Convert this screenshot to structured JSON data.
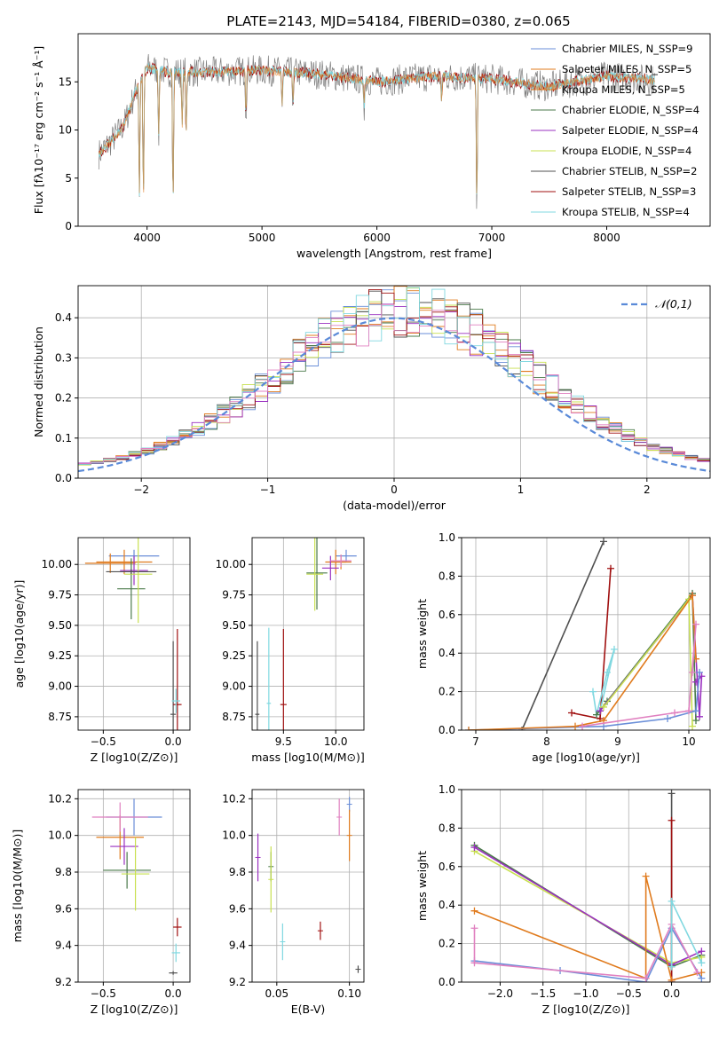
{
  "figure_title": "PLATE=2143, MJD=54184, FIBERID=0380, z=0.065",
  "colors": {
    "cm": "#6a8ed8",
    "sm": "#e07b1e",
    "km": "#e07b1e",
    "ce": "#4a7a4a",
    "se": "#9a30c0",
    "ke": "#c8e050",
    "cs": "#505050",
    "ss": "#a01010",
    "ks": "#80d8e0",
    "pink": "#e080c0",
    "data": "#7f7f7f"
  },
  "chart_data": [
    {
      "id": "spectrum",
      "type": "line",
      "title": "PLATE=2143, MJD=54184, FIBERID=0380, z=0.065",
      "xlabel": "wavelength [Angstrom, rest frame]",
      "ylabel": "Flux [fλ10⁻¹⁷ erg cm⁻² s⁻¹ Å⁻¹]",
      "xlim": [
        3400,
        8900
      ],
      "ylim": [
        0,
        20
      ],
      "xticks": [
        4000,
        5000,
        6000,
        7000,
        8000
      ],
      "yticks": [
        0,
        5,
        10,
        15
      ],
      "legend_position": "upper right",
      "legend": [
        {
          "label": "Chabrier MILES, N_SSP=9",
          "color": "#6a8ed8"
        },
        {
          "label": "Salpeter MILES, N_SSP=5",
          "color": "#e07b1e"
        },
        {
          "label": "Kroupa MILES, N_SSP=5",
          "color": "#e07b1e"
        },
        {
          "label": "Chabrier ELODIE, N_SSP=4",
          "color": "#4a7a4a"
        },
        {
          "label": "Salpeter ELODIE, N_SSP=4",
          "color": "#9a30c0"
        },
        {
          "label": "Kroupa ELODIE, N_SSP=4",
          "color": "#c8e050"
        },
        {
          "label": "Chabrier STELIB, N_SSP=2",
          "color": "#505050"
        },
        {
          "label": "Salpeter STELIB, N_SSP=3",
          "color": "#a01010"
        },
        {
          "label": "Kroupa STELIB, N_SSP=4",
          "color": "#80d8e0"
        }
      ],
      "continuum": [
        [
          3580,
          7.5
        ],
        [
          3700,
          9.0
        ],
        [
          3800,
          10.5
        ],
        [
          3900,
          14.0
        ],
        [
          4000,
          16.5
        ],
        [
          4200,
          16.0
        ],
        [
          4500,
          16.0
        ],
        [
          5000,
          16.2
        ],
        [
          5500,
          15.8
        ],
        [
          6000,
          15.0
        ],
        [
          6500,
          15.6
        ],
        [
          7000,
          15.3
        ],
        [
          7500,
          14.5
        ],
        [
          8000,
          15.6
        ],
        [
          8400,
          15.2
        ]
      ],
      "absorption_lines": [
        [
          3933,
          2
        ],
        [
          3968,
          1
        ],
        [
          4101,
          9
        ],
        [
          4226,
          0
        ],
        [
          4305,
          10
        ],
        [
          4340,
          8
        ],
        [
          4861,
          11
        ],
        [
          5175,
          12
        ],
        [
          5270,
          12.5
        ],
        [
          5890,
          12.5
        ],
        [
          6563,
          12.5
        ],
        [
          6870,
          0
        ]
      ]
    },
    {
      "id": "residuals",
      "type": "histogram",
      "xlabel": "(data-model)/error",
      "ylabel": "Normed distribution",
      "xlim": [
        -2.5,
        2.5
      ],
      "ylim": [
        0,
        0.48
      ],
      "xticks": [
        -2,
        -1,
        0,
        1,
        2
      ],
      "yticks": [
        0.0,
        0.1,
        0.2,
        0.3,
        0.4
      ],
      "grid": true,
      "legend_position": "upper right",
      "reference_curve": {
        "label": "𝒩(0,1)",
        "mean": 0,
        "sigma": 1,
        "color": "#5a8ad8"
      },
      "bin_width": 0.1
    },
    {
      "id": "age_vs_Z",
      "type": "errorbar",
      "xlabel": "Z [log10(Z/Z⊙)]",
      "ylabel": "age  [log10(age/yr)]",
      "xlim": [
        -0.68,
        0.12
      ],
      "ylim": [
        8.64,
        10.22
      ],
      "xticks": [
        -0.5,
        0.0
      ],
      "yticks": [
        8.75,
        9.0,
        9.25,
        9.5,
        9.75,
        10.0
      ],
      "grid": true,
      "points": [
        {
          "c": "cm",
          "x": -0.28,
          "y": 10.07,
          "xerr": 0.18,
          "yerr": 0.05
        },
        {
          "c": "sm",
          "x": -0.35,
          "y": 10.02,
          "xerr": 0.2,
          "yerr": 0.1
        },
        {
          "c": "km",
          "x": -0.45,
          "y": 10.01,
          "xerr": 0.18,
          "yerr": 0.08
        },
        {
          "c": "ce",
          "x": -0.3,
          "y": 9.8,
          "xerr": 0.1,
          "yerr": 0.25
        },
        {
          "c": "se",
          "x": -0.28,
          "y": 9.95,
          "xerr": 0.1,
          "yerr": 0.12
        },
        {
          "c": "ke",
          "x": -0.25,
          "y": 9.92,
          "xerr": 0.1,
          "yerr": 0.4
        },
        {
          "c": "cs",
          "x": 0.0,
          "y": 8.77,
          "xerr": 0.02,
          "yerr": 0.6
        },
        {
          "c": "ss",
          "x": 0.03,
          "y": 8.85,
          "xerr": 0.03,
          "yerr": 0.62
        },
        {
          "c": "ks",
          "x": 0.02,
          "y": 8.88,
          "xerr": 0.03,
          "yerr": 0.1
        },
        {
          "c": "cs",
          "x": -0.3,
          "y": 9.94,
          "xerr": 0.18,
          "yerr": 0.02
        }
      ]
    },
    {
      "id": "age_vs_mass",
      "type": "errorbar",
      "xlabel": "mass [log10(M/M⊙)]",
      "ylabel": "",
      "xlim": [
        9.2,
        10.27
      ],
      "ylim": [
        8.64,
        10.22
      ],
      "xticks": [
        9.5,
        10.0
      ],
      "yticks": [
        8.75,
        9.0,
        9.25,
        9.5,
        9.75,
        10.0
      ],
      "grid": true,
      "points": [
        {
          "c": "cm",
          "x": 10.1,
          "y": 10.07,
          "xerr": 0.1,
          "yerr": 0.05
        },
        {
          "c": "sm",
          "x": 10.0,
          "y": 10.02,
          "xerr": 0.1,
          "yerr": 0.1
        },
        {
          "c": "km",
          "x": 10.05,
          "y": 10.02,
          "xerr": 0.1,
          "yerr": 0.06
        },
        {
          "c": "ce",
          "x": 9.82,
          "y": 9.93,
          "xerr": 0.1,
          "yerr": 0.3
        },
        {
          "c": "se",
          "x": 9.95,
          "y": 9.97,
          "xerr": 0.08,
          "yerr": 0.1
        },
        {
          "c": "ke",
          "x": 9.8,
          "y": 9.92,
          "xerr": 0.08,
          "yerr": 0.3
        },
        {
          "c": "cs",
          "x": 9.25,
          "y": 8.77,
          "xerr": 0.02,
          "yerr": 0.6
        },
        {
          "c": "ss",
          "x": 9.5,
          "y": 8.85,
          "xerr": 0.03,
          "yerr": 0.62
        },
        {
          "c": "ks",
          "x": 9.36,
          "y": 8.86,
          "xerr": 0.02,
          "yerr": 0.62
        },
        {
          "c": "pink",
          "x": 10.05,
          "y": 10.03,
          "xerr": 0.1,
          "yerr": 0.05
        }
      ]
    },
    {
      "id": "weight_vs_age",
      "type": "line",
      "xlabel": "age  [log10(age/yr)]",
      "ylabel": "mass weight",
      "xlim": [
        6.8,
        10.3
      ],
      "ylim": [
        0,
        1.0
      ],
      "xticks": [
        7,
        8,
        9,
        10
      ],
      "yticks": [
        0.0,
        0.2,
        0.4,
        0.6,
        0.8,
        1.0
      ],
      "grid": true,
      "series": [
        {
          "c": "cs",
          "x": [
            7.65,
            8.8
          ],
          "y": [
            0.0,
            0.98
          ]
        },
        {
          "c": "ss",
          "x": [
            8.35,
            8.75,
            8.9
          ],
          "y": [
            0.09,
            0.06,
            0.84
          ]
        },
        {
          "c": "ks",
          "x": [
            8.65,
            8.7,
            8.85,
            8.95,
            8.75
          ],
          "y": [
            0.2,
            0.08,
            0.3,
            0.42,
            0.1
          ]
        },
        {
          "c": "ce",
          "x": [
            8.7,
            8.85,
            10.05,
            10.1
          ],
          "y": [
            0.08,
            0.15,
            0.71,
            0.05
          ]
        },
        {
          "c": "se",
          "x": [
            8.75,
            10.05,
            10.15,
            10.18,
            10.1
          ],
          "y": [
            0.1,
            0.7,
            0.07,
            0.28,
            0.25
          ]
        },
        {
          "c": "ke",
          "x": [
            8.8,
            10.0,
            10.05
          ],
          "y": [
            0.12,
            0.68,
            0.02
          ]
        },
        {
          "c": "cm",
          "x": [
            6.9,
            8.8,
            9.7,
            10.1,
            10.15
          ],
          "y": [
            0.0,
            0.02,
            0.06,
            0.1,
            0.3
          ]
        },
        {
          "c": "sm",
          "x": [
            6.9,
            8.4,
            8.8,
            10.05,
            10.1
          ],
          "y": [
            0.0,
            0.02,
            0.05,
            0.7,
            0.37
          ]
        },
        {
          "c": "pink",
          "x": [
            8.5,
            9.8,
            10.0,
            10.1,
            10.05
          ],
          "y": [
            0.02,
            0.09,
            0.1,
            0.55,
            0.3
          ]
        }
      ]
    },
    {
      "id": "mass_vs_Z",
      "type": "errorbar",
      "xlabel": "Z [log10(Z/Z⊙)]",
      "ylabel": "mass [log10(M/M⊙)]",
      "xlim": [
        -0.68,
        0.12
      ],
      "ylim": [
        9.2,
        10.25
      ],
      "xticks": [
        -0.5,
        0.0
      ],
      "yticks": [
        9.2,
        9.4,
        9.6,
        9.8,
        10.0,
        10.2
      ],
      "grid": true,
      "points": [
        {
          "c": "cm",
          "x": -0.28,
          "y": 10.1,
          "xerr": 0.2,
          "yerr": 0.1
        },
        {
          "c": "sm",
          "x": -0.38,
          "y": 9.99,
          "xerr": 0.17,
          "yerr": 0.12
        },
        {
          "c": "pink",
          "x": -0.38,
          "y": 10.1,
          "xerr": 0.2,
          "yerr": 0.08
        },
        {
          "c": "ce",
          "x": -0.33,
          "y": 9.81,
          "xerr": 0.17,
          "yerr": 0.1
        },
        {
          "c": "se",
          "x": -0.35,
          "y": 9.94,
          "xerr": 0.1,
          "yerr": 0.1
        },
        {
          "c": "ke",
          "x": -0.27,
          "y": 9.79,
          "xerr": 0.1,
          "yerr": 0.2
        },
        {
          "c": "cs",
          "x": 0.0,
          "y": 9.25,
          "xerr": 0.03,
          "yerr": 0.01
        },
        {
          "c": "ss",
          "x": 0.03,
          "y": 9.5,
          "xerr": 0.03,
          "yerr": 0.05
        },
        {
          "c": "ks",
          "x": 0.02,
          "y": 9.36,
          "xerr": 0.03,
          "yerr": 0.05
        }
      ]
    },
    {
      "id": "mass_vs_EBV",
      "type": "errorbar",
      "xlabel": "E(B-V)",
      "ylabel": "",
      "xlim": [
        0.033,
        0.11
      ],
      "ylim": [
        9.2,
        10.25
      ],
      "xticks": [
        0.05,
        0.1
      ],
      "yticks": [
        9.2,
        9.4,
        9.6,
        9.8,
        10.0,
        10.2
      ],
      "grid": true,
      "points": [
        {
          "c": "cm",
          "x": 0.1,
          "y": 10.17,
          "xerr": 0,
          "yerr": 0.04
        },
        {
          "c": "sm",
          "x": 0.1,
          "y": 10.0,
          "xerr": 0,
          "yerr": 0.14
        },
        {
          "c": "pink",
          "x": 0.093,
          "y": 10.1,
          "xerr": 0,
          "yerr": 0.1
        },
        {
          "c": "se",
          "x": 0.037,
          "y": 9.88,
          "xerr": 0,
          "yerr": 0.13
        },
        {
          "c": "ce",
          "x": 0.046,
          "y": 9.83,
          "xerr": 0,
          "yerr": 0.08
        },
        {
          "c": "ke",
          "x": 0.046,
          "y": 9.76,
          "xerr": 0,
          "yerr": 0.18
        },
        {
          "c": "ks",
          "x": 0.054,
          "y": 9.42,
          "xerr": 0,
          "yerr": 0.1
        },
        {
          "c": "ss",
          "x": 0.08,
          "y": 9.48,
          "xerr": 0,
          "yerr": 0.05
        },
        {
          "c": "cs",
          "x": 0.106,
          "y": 9.27,
          "xerr": 0,
          "yerr": 0.02
        }
      ]
    },
    {
      "id": "weight_vs_Z",
      "type": "line",
      "xlabel": "Z [log10(Z/Z⊙)]",
      "ylabel": "mass weight",
      "xlim": [
        -2.45,
        0.45
      ],
      "ylim": [
        0,
        1.0
      ],
      "xticks": [
        -2.0,
        -1.5,
        -1.0,
        -0.5,
        0.0
      ],
      "yticks": [
        0.0,
        0.2,
        0.4,
        0.6,
        0.8,
        1.0
      ],
      "grid": true,
      "series": [
        {
          "c": "cs",
          "x": [
            0.0,
            0.0
          ],
          "y": [
            0.0,
            0.98
          ]
        },
        {
          "c": "ss",
          "x": [
            0.0,
            0.0
          ],
          "y": [
            0.0,
            0.84
          ]
        },
        {
          "c": "ce",
          "x": [
            -2.3,
            0.0,
            0.35
          ],
          "y": [
            0.71,
            0.08,
            0.14
          ]
        },
        {
          "c": "ke",
          "x": [
            -2.3,
            0.0,
            0.35
          ],
          "y": [
            0.68,
            0.1,
            0.13
          ]
        },
        {
          "c": "se",
          "x": [
            -2.3,
            0.0,
            0.35
          ],
          "y": [
            0.7,
            0.09,
            0.16
          ]
        },
        {
          "c": "cm",
          "x": [
            -2.3,
            -1.3,
            -0.3,
            0.0,
            0.35
          ],
          "y": [
            0.11,
            0.06,
            0.0,
            0.28,
            0.02
          ]
        },
        {
          "c": "sm",
          "x": [
            -2.3,
            -0.3,
            -0.3,
            0.0,
            0.35
          ],
          "y": [
            0.37,
            0.02,
            0.55,
            0.01,
            0.05
          ]
        },
        {
          "c": "pink",
          "x": [
            -2.3,
            -2.3,
            -0.3,
            0.0,
            0.3
          ],
          "y": [
            0.28,
            0.1,
            0.02,
            0.3,
            0.05
          ]
        },
        {
          "c": "ks",
          "x": [
            0.0,
            0.0,
            0.35
          ],
          "y": [
            0.08,
            0.42,
            0.1
          ]
        }
      ]
    }
  ]
}
